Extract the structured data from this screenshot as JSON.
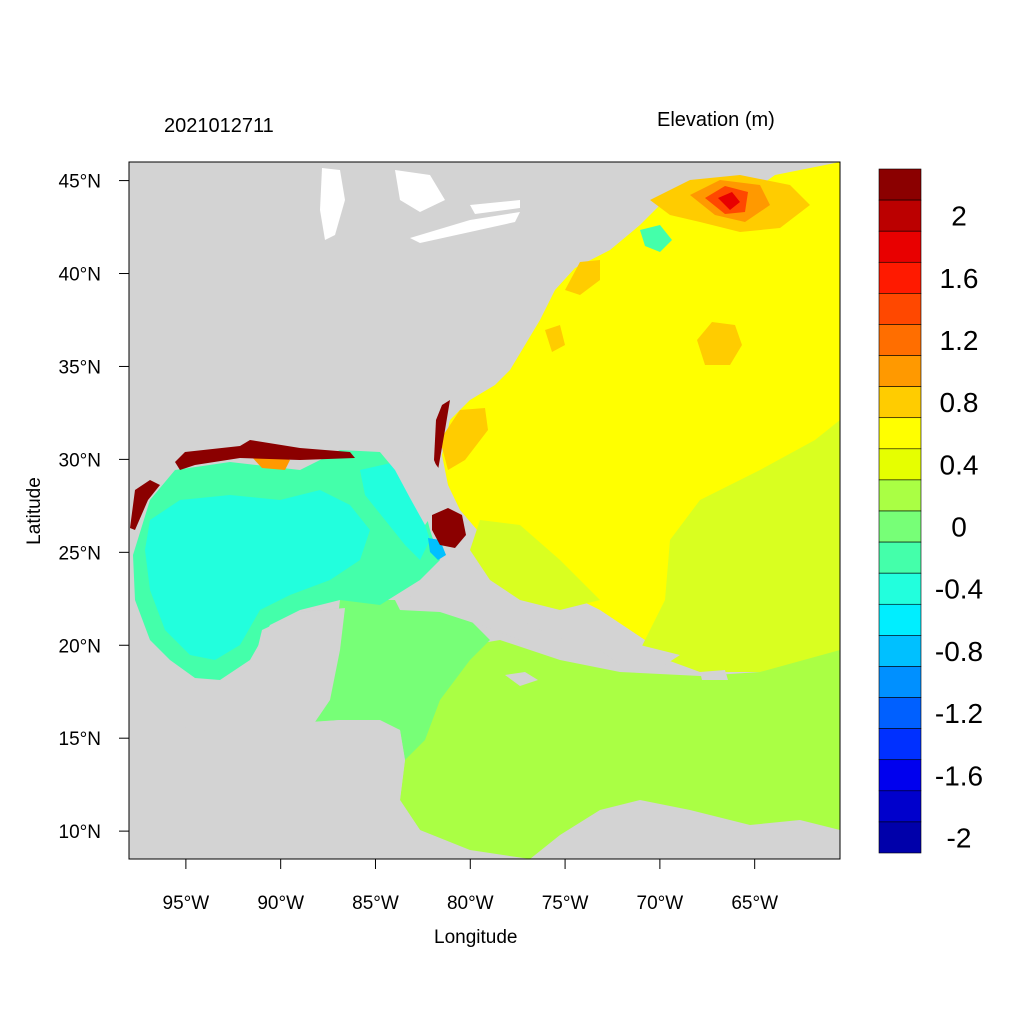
{
  "header": {
    "timestamp": "2021012711",
    "field_title": "Elevation (m)"
  },
  "map": {
    "projection": "lat-lon",
    "lon_range_deg": [
      -98,
      -60.5
    ],
    "lat_range_deg": [
      8.5,
      46
    ],
    "x_axis_label": "Longitude",
    "y_axis_label": "Latitude",
    "x_ticks": [
      {
        "lon": -95,
        "label": "95°W"
      },
      {
        "lon": -90,
        "label": "90°W"
      },
      {
        "lon": -85,
        "label": "85°W"
      },
      {
        "lon": -80,
        "label": "80°W"
      },
      {
        "lon": -75,
        "label": "75°W"
      },
      {
        "lon": -70,
        "label": "70°W"
      },
      {
        "lon": -65,
        "label": "65°W"
      }
    ],
    "y_ticks": [
      {
        "lat": 45,
        "label": "45°N"
      },
      {
        "lat": 40,
        "label": "40°N"
      },
      {
        "lat": 35,
        "label": "35°N"
      },
      {
        "lat": 30,
        "label": "30°N"
      },
      {
        "lat": 25,
        "label": "25°N"
      },
      {
        "lat": 20,
        "label": "20°N"
      },
      {
        "lat": 15,
        "label": "15°N"
      },
      {
        "lat": 10,
        "label": "10°N"
      }
    ],
    "land_color": "#d3d3d3",
    "ocean_base_color": "#ffff00"
  },
  "colorbar": {
    "levels_top_to_bottom": [
      {
        "color": "#8b0000",
        "label": ""
      },
      {
        "color": "#bb0000",
        "label": "2"
      },
      {
        "color": "#e80000",
        "label": ""
      },
      {
        "color": "#ff1a00",
        "label": "1.6"
      },
      {
        "color": "#ff4800",
        "label": ""
      },
      {
        "color": "#ff6e00",
        "label": "1.2"
      },
      {
        "color": "#ff9900",
        "label": ""
      },
      {
        "color": "#ffcc00",
        "label": "0.8"
      },
      {
        "color": "#ffff00",
        "label": ""
      },
      {
        "color": "#e6ff00",
        "label": "0.4"
      },
      {
        "color": "#aaff44",
        "label": ""
      },
      {
        "color": "#77ff77",
        "label": "0"
      },
      {
        "color": "#44ffaa",
        "label": ""
      },
      {
        "color": "#22ffdd",
        "label": "-0.4"
      },
      {
        "color": "#00eeff",
        "label": ""
      },
      {
        "color": "#00c0ff",
        "label": "-0.8"
      },
      {
        "color": "#0090ff",
        "label": ""
      },
      {
        "color": "#0060ff",
        "label": "-1.2"
      },
      {
        "color": "#0030ff",
        "label": ""
      },
      {
        "color": "#0000ee",
        "label": "-1.6"
      },
      {
        "color": "#0000cc",
        "label": ""
      },
      {
        "color": "#0000aa",
        "label": "-2"
      }
    ]
  }
}
